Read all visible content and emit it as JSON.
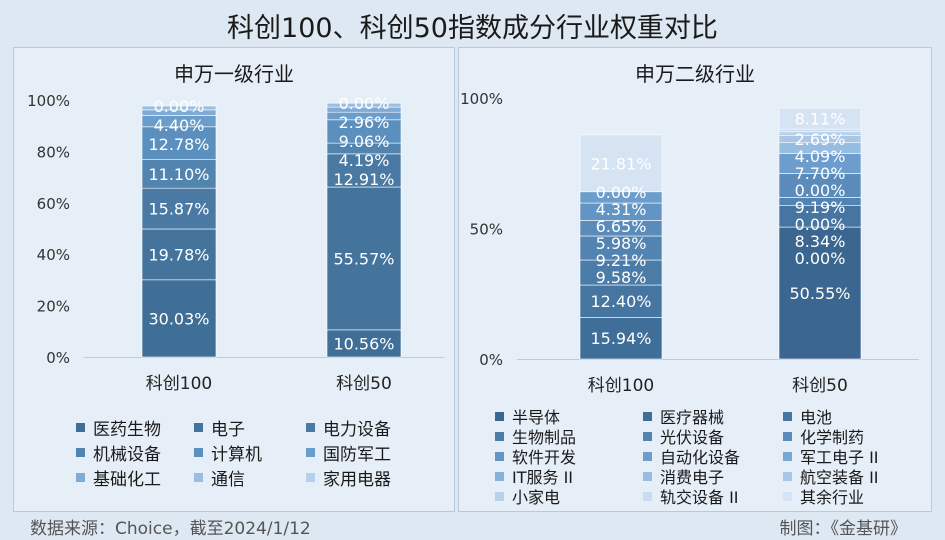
{
  "title": "科创100、科创50指数成分行业权重对比",
  "source_note": "数据来源：Choice，截至2024/1/12",
  "credit": "制图：《金基研》",
  "chart_data": [
    {
      "type": "bar",
      "stacked": true,
      "title": "申万一级行业",
      "categories": [
        "科创100",
        "科创50"
      ],
      "ylim": [
        0,
        100
      ],
      "yticks": [
        "0%",
        "20%",
        "40%",
        "60%",
        "80%",
        "100%"
      ],
      "grid": false,
      "legend_position": "bottom",
      "series": [
        {
          "name": "医药生物",
          "color": "#3f6e96",
          "values": [
            30.03,
            10.56
          ]
        },
        {
          "name": "电子",
          "color": "#44739c",
          "values": [
            19.78,
            55.57
          ]
        },
        {
          "name": "电力设备",
          "color": "#4a7aa4",
          "values": [
            15.87,
            12.91
          ]
        },
        {
          "name": "机械设备",
          "color": "#5284b0",
          "values": [
            11.1,
            4.19
          ]
        },
        {
          "name": "计算机",
          "color": "#5a8fbe",
          "values": [
            12.78,
            9.06
          ]
        },
        {
          "name": "国防军工",
          "color": "#6a9dcb",
          "values": [
            4.4,
            2.96
          ]
        },
        {
          "name": "基础化工",
          "color": "#7fabd5",
          "values": [
            2.2,
            2.0
          ]
        },
        {
          "name": "通信",
          "color": "#9bbde0",
          "values": [
            1.5,
            1.5
          ]
        },
        {
          "name": "家用电器",
          "color": "#b6cfea",
          "values": [
            0.0,
            0.0
          ]
        }
      ],
      "labels": [
        [
          "30.03%",
          "19.78%",
          "15.87%",
          "11.10%",
          "12.78%",
          "4.40%",
          "",
          "",
          "0.00%"
        ],
        [
          "10.56%",
          "55.57%",
          "12.91%",
          "4.19%",
          "9.06%",
          "2.96%",
          "",
          "",
          "0.00%"
        ]
      ]
    },
    {
      "type": "bar",
      "stacked": true,
      "title": "申万二级行业",
      "categories": [
        "科创100",
        "科创50"
      ],
      "ylim": [
        0,
        100
      ],
      "yticks": [
        "0%",
        "50%",
        "100%"
      ],
      "grid": false,
      "legend_position": "bottom",
      "series": [
        {
          "name": "半导体",
          "color": "#3b6690",
          "values": [
            0,
            50.55
          ]
        },
        {
          "name": "医疗器械",
          "color": "#3f6e98",
          "values": [
            15.94,
            0.0
          ]
        },
        {
          "name": "电池",
          "color": "#4575a0",
          "values": [
            12.4,
            8.34
          ]
        },
        {
          "name": "生物制品",
          "color": "#4b7ca8",
          "values": [
            9.58,
            0.0
          ]
        },
        {
          "name": "光伏设备",
          "color": "#5383b0",
          "values": [
            9.21,
            3.0
          ]
        },
        {
          "name": "化学制药",
          "color": "#5a8bba",
          "values": [
            5.98,
            9.19
          ]
        },
        {
          "name": "软件开发",
          "color": "#6294c4",
          "values": [
            6.65,
            0.0
          ]
        },
        {
          "name": "自动化设备",
          "color": "#6c9dcc",
          "values": [
            4.31,
            7.7
          ]
        },
        {
          "name": "军工电子 II",
          "color": "#78a7d3",
          "values": [
            0,
            0.0
          ]
        },
        {
          "name": "IT服务 II",
          "color": "#86b1da",
          "values": [
            0,
            0.0
          ]
        },
        {
          "name": "消费电子",
          "color": "#96bce0",
          "values": [
            0,
            4.09
          ]
        },
        {
          "name": "航空装备 II",
          "color": "#a8c7e6",
          "values": [
            0,
            2.69
          ]
        },
        {
          "name": "小家电",
          "color": "#b8d1eb",
          "values": [
            0.0,
            1.5
          ]
        },
        {
          "name": "轨交设备 II",
          "color": "#c9dcf0",
          "values": [
            0,
            1.0
          ]
        },
        {
          "name": "其余行业",
          "color": "#d6e3f2",
          "values": [
            21.81,
            8.11
          ]
        }
      ],
      "labels": [
        [
          "",
          "15.94%",
          "12.40%",
          "9.58%",
          "9.21%",
          "5.98%",
          "6.65%",
          "4.31%",
          "",
          "",
          "",
          "",
          "0.00%",
          "",
          "21.81%"
        ],
        [
          "50.55%",
          "0.00%",
          "8.34%",
          "0.00%",
          "",
          "9.19%",
          "0.00%",
          "7.70%",
          "",
          "",
          "4.09%",
          "2.69%",
          "",
          "",
          "8.11%"
        ]
      ]
    }
  ]
}
